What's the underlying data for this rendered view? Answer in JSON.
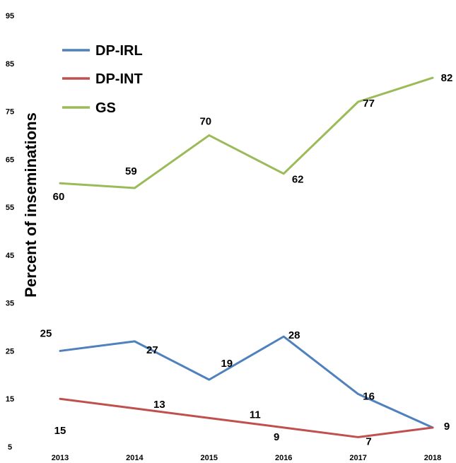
{
  "chart_data": {
    "type": "line",
    "title": "",
    "xlabel": "",
    "ylabel": "Percent of inseminations",
    "x": [
      "2013",
      "2014",
      "2015",
      "2016",
      "2017",
      "2018"
    ],
    "yticks": [
      5,
      15,
      25,
      35,
      45,
      55,
      65,
      75,
      85,
      95
    ],
    "ylim": [
      5,
      95
    ],
    "grid": false,
    "legend_position": "top-left",
    "series": [
      {
        "name": "DP-IRL",
        "color": "#4f81bd",
        "values": [
          25,
          27,
          19,
          28,
          16,
          9
        ]
      },
      {
        "name": "DP-INT",
        "color": "#c0504d",
        "values": [
          15,
          13,
          11,
          9,
          7,
          9
        ]
      },
      {
        "name": "GS",
        "color": "#9bbb59",
        "values": [
          60,
          59,
          70,
          62,
          77,
          82
        ]
      }
    ]
  }
}
